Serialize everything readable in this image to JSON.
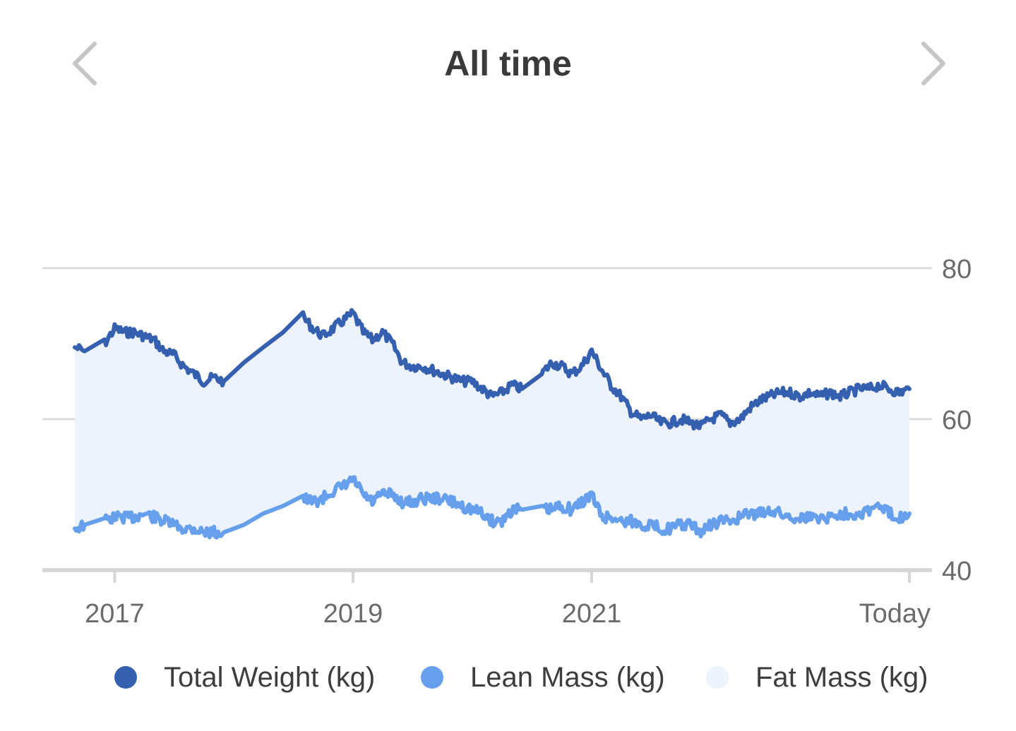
{
  "header": {
    "title": "All time",
    "prev_icon": "chevron-left-icon",
    "next_icon": "chevron-right-icon"
  },
  "colors": {
    "total": "#3560b0",
    "lean": "#66a0ec",
    "fat": "#edf3fd",
    "grid": "#dcdcdc",
    "axis": "#d6d6d6",
    "text": "#6b6b6b",
    "title": "#3a3a3a",
    "chevron": "#c6c6c6"
  },
  "chart_data": {
    "type": "area",
    "title": "All time",
    "xlabel": "",
    "ylabel": "",
    "x_range": [
      "2016-09-01",
      "2023-09-01"
    ],
    "ylim": [
      40,
      80
    ],
    "y_ticks": [
      40,
      60,
      80
    ],
    "y_tick_labels": [
      "40",
      "60",
      "80"
    ],
    "y_axis_position": "right",
    "x_ticks": [
      {
        "date": "2017-01-01",
        "label": "2017"
      },
      {
        "date": "2019-01-01",
        "label": "2019"
      },
      {
        "date": "2021-01-01",
        "label": "2021"
      },
      {
        "date": "2023-09-01",
        "label": "Today"
      }
    ],
    "grid": true,
    "legend_position": "bottom",
    "x": [
      "2016-09",
      "2016-10",
      "2016-12",
      "2017-01",
      "2017-02",
      "2017-03",
      "2017-04",
      "2017-05",
      "2017-06",
      "2017-07",
      "2017-08",
      "2017-09",
      "2017-10",
      "2017-11",
      "2017-12",
      "2018-02",
      "2018-04",
      "2018-06",
      "2018-08",
      "2018-09",
      "2018-10",
      "2018-11",
      "2018-12",
      "2019-01",
      "2019-02",
      "2019-03",
      "2019-04",
      "2019-05",
      "2019-06",
      "2019-07",
      "2019-08",
      "2019-09",
      "2019-10",
      "2019-11",
      "2019-12",
      "2020-01",
      "2020-02",
      "2020-03",
      "2020-04",
      "2020-05",
      "2020-06",
      "2020-08",
      "2020-09",
      "2020-10",
      "2020-11",
      "2020-12",
      "2021-01",
      "2021-02",
      "2021-03",
      "2021-04",
      "2021-05",
      "2021-06",
      "2021-07",
      "2021-08",
      "2021-09",
      "2021-10",
      "2021-11",
      "2021-12",
      "2022-01",
      "2022-02",
      "2022-03",
      "2022-04",
      "2022-05",
      "2022-06",
      "2022-07",
      "2022-08",
      "2022-09",
      "2022-10",
      "2022-11",
      "2022-12",
      "2023-01",
      "2023-02",
      "2023-03",
      "2023-04",
      "2023-05",
      "2023-06",
      "2023-07",
      "2023-08",
      "2023-09"
    ],
    "series": [
      {
        "name": "Total Weight (kg)",
        "values": [
          69.5,
          69,
          70,
          72,
          71.5,
          71.5,
          71,
          70.5,
          69,
          68.5,
          67,
          66,
          65,
          65.5,
          65,
          67.5,
          69.5,
          71.5,
          73.5,
          72,
          71,
          72,
          73,
          74,
          71.5,
          70.5,
          71.5,
          70,
          67.5,
          67,
          67,
          66.5,
          66,
          65.5,
          65,
          65,
          64,
          63,
          63.5,
          64.5,
          64,
          66,
          67.5,
          67,
          66,
          67,
          69,
          66.5,
          64.5,
          63,
          61,
          60,
          60.5,
          59.5,
          59.5,
          60,
          59.5,
          59,
          60,
          60.5,
          59.5,
          60,
          61.5,
          62.5,
          63,
          63.5,
          63.5,
          63,
          63.5,
          63,
          63.5,
          63,
          63.5,
          64,
          64,
          64.5,
          64,
          63.5,
          64
        ]
      },
      {
        "name": "Lean Mass (kg)",
        "values": [
          45.5,
          46,
          46.5,
          47,
          47,
          47,
          47.5,
          47,
          46.5,
          46,
          45.5,
          45.5,
          45,
          45,
          45,
          46,
          47.5,
          48.5,
          49.5,
          49,
          49.5,
          50.5,
          51,
          52,
          50,
          49,
          50,
          50,
          49,
          49,
          49.5,
          49.5,
          49.5,
          49,
          48.5,
          48,
          47.5,
          46.5,
          46.5,
          48,
          48,
          48,
          48,
          48.5,
          48,
          49,
          50,
          47,
          47,
          46.5,
          46.5,
          46,
          46,
          45.5,
          45.5,
          46,
          46,
          45,
          46,
          46.5,
          46.5,
          47,
          47.5,
          47.5,
          48,
          47.5,
          47,
          47,
          47,
          47,
          47,
          47.5,
          47.5,
          47.5,
          48,
          48.5,
          47.5,
          47,
          47.5
        ]
      },
      {
        "name": "Fat Mass (kg)",
        "values": [
          24,
          23,
          23.5,
          25,
          24.5,
          24.5,
          23.5,
          23.5,
          22.5,
          22.5,
          21.5,
          20.5,
          20,
          20.5,
          20,
          21.5,
          22,
          23,
          24,
          23,
          21.5,
          21.5,
          22,
          22,
          21.5,
          21.5,
          21.5,
          20,
          18.5,
          18,
          17.5,
          17,
          16.5,
          16.5,
          16.5,
          17,
          16.5,
          16.5,
          17,
          16.5,
          16,
          18,
          19.5,
          18.5,
          18,
          18,
          19,
          19.5,
          17.5,
          16.5,
          14.5,
          14,
          14.5,
          14,
          14,
          14,
          13.5,
          14,
          14,
          14,
          13,
          13,
          14,
          15,
          15,
          16,
          16.5,
          16,
          16.5,
          16,
          16.5,
          15.5,
          16,
          16.5,
          16,
          16,
          16.5,
          16.5,
          16.5
        ]
      }
    ]
  },
  "legend": {
    "items": [
      {
        "label": "Total Weight (kg)"
      },
      {
        "label": "Lean Mass (kg)"
      },
      {
        "label": "Fat Mass (kg)"
      }
    ]
  }
}
